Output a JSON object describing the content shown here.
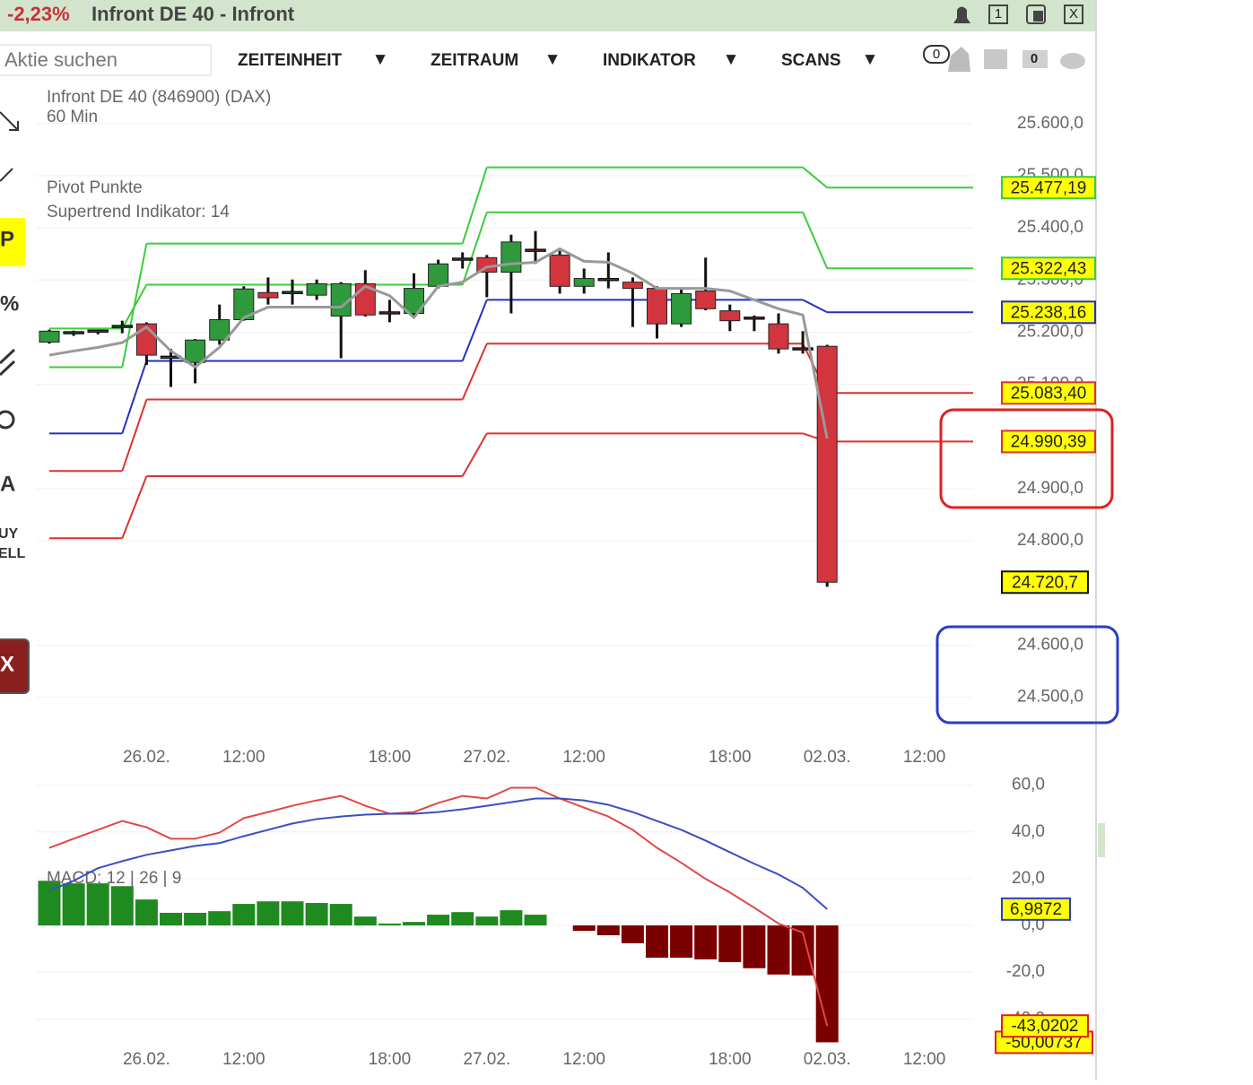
{
  "header": {
    "change": "-2,23%",
    "title": "Infront DE 40 - Infront",
    "buttons": [
      "1",
      "X"
    ]
  },
  "toolbar": {
    "search_placeholder": "Aktie suchen",
    "menus": [
      "ZEITEINHEIT",
      "ZEITRAUM",
      "INDIKATOR",
      "SCANS"
    ],
    "menu_arrow": "▼",
    "badges": [
      "0",
      "0"
    ]
  },
  "tools": [
    "P",
    "%",
    "A",
    "UY",
    "ELL",
    "X"
  ],
  "chart_data": [
    {
      "type": "candlestick",
      "title": "Infront DE 40 (846900) (DAX)",
      "subtitle": "60 Min",
      "categories": [
        null,
        null,
        null,
        null,
        "26.02.",
        null,
        null,
        null,
        "12:00",
        null,
        null,
        null,
        null,
        null,
        "18:00",
        null,
        null,
        null,
        "27.02.",
        null,
        null,
        null,
        "12:00",
        null,
        null,
        null,
        null,
        null,
        "18:00",
        null,
        null,
        null,
        "02.03.",
        null,
        null,
        null,
        "12:00"
      ],
      "open": [
        25181,
        25198,
        25201,
        25210,
        25216,
        25150,
        25142,
        25185,
        25224,
        25276,
        25275,
        25271,
        25231,
        25293,
        25237,
        25236,
        25288,
        25338,
        25343,
        25315,
        25357,
        25348,
        25288,
        25301,
        25296,
        25284,
        25216,
        25279,
        25241,
        25227,
        25216,
        25168,
        25173,
        null,
        null,
        null,
        null
      ],
      "high": [
        25205,
        25203,
        25205,
        25222,
        25219,
        25168,
        25187,
        25253,
        25288,
        25305,
        25301,
        25301,
        25296,
        25319,
        25262,
        25313,
        25339,
        25353,
        25348,
        25387,
        25394,
        25356,
        25322,
        25353,
        25305,
        25288,
        25284,
        25343,
        25253,
        25232,
        25236,
        25202,
        25176,
        null,
        null,
        null,
        null
      ],
      "low": [
        25178,
        25193,
        25196,
        25198,
        25137,
        25095,
        25102,
        25176,
        25222,
        25253,
        25253,
        25262,
        25150,
        25230,
        25219,
        25228,
        25284,
        25322,
        25267,
        25236,
        25331,
        25274,
        25274,
        25284,
        25210,
        25188,
        25210,
        25242,
        25202,
        25202,
        25159,
        25159,
        24712,
        null,
        null,
        null,
        null
      ],
      "close": [
        25202,
        25199,
        25202,
        25211,
        25156,
        25152,
        25185,
        25224,
        25283,
        25266,
        25276,
        25293,
        25293,
        25233,
        25236,
        25284,
        25331,
        25340,
        25315,
        25373,
        25356,
        25288,
        25303,
        25301,
        25284,
        25216,
        25274,
        25245,
        25222,
        25226,
        25168,
        25166,
        24720.7,
        null,
        null,
        null,
        null
      ],
      "last_close_label": "24.720,7",
      "colors": {
        "up": "#2e9a3c",
        "down": "#d2353d"
      },
      "ylim": [
        24410,
        25665
      ],
      "yticks": [
        {
          "value": 25600,
          "label": "25.600,0"
        },
        {
          "value": 25500,
          "label": "25.500,0"
        },
        {
          "value": 25400,
          "label": "25.400,0"
        },
        {
          "value": 25300,
          "label": "25.300,0"
        },
        {
          "value": 25200,
          "label": "25.200,0"
        },
        {
          "value": 25100,
          "label": "25.100,0"
        },
        {
          "value": 24900,
          "label": "24.900,0"
        },
        {
          "value": 24800,
          "label": "24.800,0"
        },
        {
          "value": 24600,
          "label": "24.600,0"
        },
        {
          "value": 24500,
          "label": "24.500,0"
        }
      ],
      "grid": true,
      "pivot": {
        "name": "Pivot Punkte",
        "series": [
          {
            "color": "#3ccc3c",
            "values": [
              25133,
              25370,
              25516,
              25477.19
            ],
            "value_labels": [
              null,
              null,
              null,
              "25.477,19"
            ]
          },
          {
            "color": "#3ccc3c",
            "values": [
              25207,
              25291,
              25430,
              25322.43
            ],
            "value_labels": [
              null,
              null,
              null,
              "25.322,43"
            ]
          },
          {
            "color": "#2233bb",
            "values": [
              25006,
              25145,
              25262,
              25238.16
            ],
            "value_labels": [
              null,
              null,
              null,
              "25.238,16"
            ]
          },
          {
            "color": "#e03030",
            "values": [
              24934,
              25071,
              25178,
              25083.4
            ],
            "value_labels": [
              null,
              null,
              null,
              "25.083,40"
            ]
          },
          {
            "color": "#e03030",
            "values": [
              24805,
              24924,
              25006,
              24990.39
            ],
            "value_labels": [
              null,
              null,
              null,
              "24.990,39"
            ]
          }
        ]
      },
      "supertrend": {
        "name": "Supertrend Indikator: 14",
        "color": "#999999",
        "values": [
          25156,
          25164,
          25171,
          25180,
          25210,
          25164,
          25133,
          25171,
          25228,
          25248,
          25248,
          25248,
          25248,
          25288,
          25270,
          25228,
          25288,
          25296,
          25325,
          25331,
          25334,
          25360,
          25336,
          25334,
          25313,
          25284,
          25284,
          25284,
          25279,
          25262,
          25245,
          25233,
          24996,
          null,
          null,
          null,
          null
        ]
      }
    },
    {
      "type": "macd",
      "title": "MACD: 12 | 26 | 9",
      "categories": [
        null,
        null,
        null,
        null,
        "26.02.",
        null,
        null,
        null,
        "12:00",
        null,
        null,
        null,
        null,
        null,
        "18:00",
        null,
        null,
        null,
        "27.02.",
        null,
        null,
        null,
        "12:00",
        null,
        null,
        null,
        null,
        null,
        "18:00",
        null,
        null,
        null,
        "02.03.",
        null,
        null,
        null,
        "12:00"
      ],
      "series": [
        {
          "color": "#e04848",
          "values": [
            33.2,
            37.1,
            40.9,
            44.7,
            42.0,
            37.1,
            37.1,
            39.7,
            45.9,
            48.5,
            51.2,
            53.5,
            55.4,
            51.2,
            47.8,
            48.5,
            52.4,
            55.4,
            54.3,
            58.9,
            58.9,
            54.3,
            50.4,
            46.6,
            40.9,
            33.2,
            26.8,
            19.9,
            14.1,
            7.6,
            0.8,
            -3.1,
            -43.0202,
            null,
            null,
            null,
            null
          ],
          "last_label": "-43,0202"
        },
        {
          "color": "#3a4fc0",
          "values": [
            14.9,
            19.1,
            24.5,
            27.5,
            30.2,
            32.1,
            34.0,
            35.2,
            38.2,
            40.9,
            43.6,
            45.5,
            46.6,
            47.4,
            47.8,
            47.8,
            48.5,
            49.7,
            51.2,
            52.7,
            54.3,
            54.3,
            53.5,
            51.6,
            48.5,
            44.7,
            40.9,
            36.3,
            31.3,
            26.4,
            21.8,
            16.1,
            6.9872,
            null,
            null,
            null,
            null
          ],
          "last_label": "6,9872"
        }
      ],
      "histogram": {
        "colors": {
          "positive": "#1f8a1f",
          "negative": "#7a0000"
        },
        "values": [
          19.1,
          18.0,
          18.0,
          16.8,
          11.1,
          5.4,
          5.4,
          6.1,
          9.2,
          10.3,
          10.3,
          9.6,
          9.2,
          3.8,
          0.8,
          1.5,
          4.6,
          5.7,
          3.8,
          6.5,
          4.6,
          null,
          -2.3,
          -4.2,
          -7.6,
          -13.8,
          -13.8,
          -14.5,
          -15.7,
          -18.3,
          -21.0,
          -21.4,
          -50.00737,
          null,
          null,
          null,
          null
        ],
        "last_label": "-50,00737"
      },
      "ylim": [
        -51,
        66
      ],
      "yticks": [
        {
          "value": 60,
          "label": "60,0"
        },
        {
          "value": 40,
          "label": "40,0"
        },
        {
          "value": 20,
          "label": "20,0"
        },
        {
          "value": 0,
          "label": "0,0"
        },
        {
          "value": -20,
          "label": "-20,0"
        },
        {
          "value": -40,
          "label": "-40,0"
        }
      ],
      "grid": true
    }
  ]
}
